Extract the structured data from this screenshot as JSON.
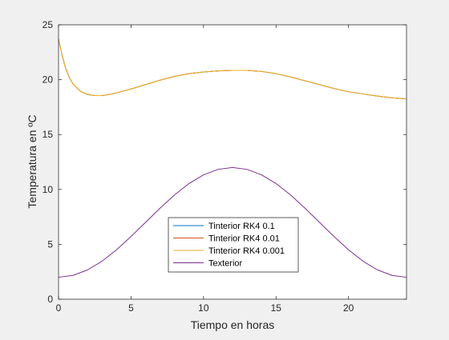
{
  "chart_data": {
    "type": "line",
    "title": "",
    "xlabel": "Tiempo en horas",
    "ylabel": "Temperatura en ºC",
    "xlim": [
      0,
      24
    ],
    "ylim": [
      0,
      25
    ],
    "xticks": [
      0,
      5,
      10,
      15,
      20
    ],
    "yticks": [
      0,
      5,
      10,
      15,
      20,
      25
    ],
    "grid": false,
    "legend_position": "bottom-center",
    "series": [
      {
        "name": "Tinterior RK4 0.1",
        "color": "#0072BD",
        "x": [
          0,
          0.25,
          0.5,
          0.75,
          1,
          1.5,
          2,
          2.5,
          3,
          3.5,
          4,
          5,
          6,
          7,
          8,
          9,
          10,
          11,
          12,
          13,
          14,
          15,
          16,
          17,
          18,
          19,
          20,
          21,
          22,
          23,
          24
        ],
        "y": [
          23.7,
          22.2,
          21.0,
          20.2,
          19.6,
          18.95,
          18.65,
          18.55,
          18.55,
          18.65,
          18.8,
          19.15,
          19.55,
          19.95,
          20.3,
          20.55,
          20.7,
          20.8,
          20.85,
          20.85,
          20.75,
          20.55,
          20.25,
          19.9,
          19.55,
          19.2,
          18.9,
          18.7,
          18.5,
          18.35,
          18.25
        ]
      },
      {
        "name": "Tinterior RK4 0.01",
        "color": "#D95319",
        "x": [
          0,
          0.25,
          0.5,
          0.75,
          1,
          1.5,
          2,
          2.5,
          3,
          3.5,
          4,
          5,
          6,
          7,
          8,
          9,
          10,
          11,
          12,
          13,
          14,
          15,
          16,
          17,
          18,
          19,
          20,
          21,
          22,
          23,
          24
        ],
        "y": [
          23.7,
          22.2,
          21.0,
          20.2,
          19.6,
          18.95,
          18.65,
          18.55,
          18.55,
          18.65,
          18.8,
          19.15,
          19.55,
          19.95,
          20.3,
          20.55,
          20.7,
          20.8,
          20.85,
          20.85,
          20.75,
          20.55,
          20.25,
          19.9,
          19.55,
          19.2,
          18.9,
          18.7,
          18.5,
          18.35,
          18.25
        ]
      },
      {
        "name": "Tinterior RK4 0.001",
        "color": "#EDB120",
        "x": [
          0,
          0.25,
          0.5,
          0.75,
          1,
          1.5,
          2,
          2.5,
          3,
          3.5,
          4,
          5,
          6,
          7,
          8,
          9,
          10,
          11,
          12,
          13,
          14,
          15,
          16,
          17,
          18,
          19,
          20,
          21,
          22,
          23,
          24
        ],
        "y": [
          23.7,
          22.2,
          21.0,
          20.2,
          19.6,
          18.95,
          18.65,
          18.55,
          18.55,
          18.65,
          18.8,
          19.15,
          19.55,
          19.95,
          20.3,
          20.55,
          20.7,
          20.8,
          20.85,
          20.85,
          20.75,
          20.55,
          20.25,
          19.9,
          19.55,
          19.2,
          18.9,
          18.7,
          18.5,
          18.35,
          18.25
        ]
      },
      {
        "name": "Texterior",
        "color": "#7E2F8E",
        "x": [
          0,
          1,
          2,
          3,
          4,
          5,
          6,
          7,
          8,
          9,
          10,
          11,
          12,
          13,
          14,
          15,
          16,
          17,
          18,
          19,
          20,
          21,
          22,
          23,
          24
        ],
        "y": [
          2.0,
          2.17,
          2.67,
          3.46,
          4.5,
          5.71,
          7.0,
          8.29,
          9.5,
          10.54,
          11.33,
          11.83,
          12.0,
          11.83,
          11.33,
          10.54,
          9.5,
          8.29,
          7.0,
          5.71,
          4.5,
          3.46,
          2.67,
          2.17,
          2.0
        ]
      }
    ]
  }
}
